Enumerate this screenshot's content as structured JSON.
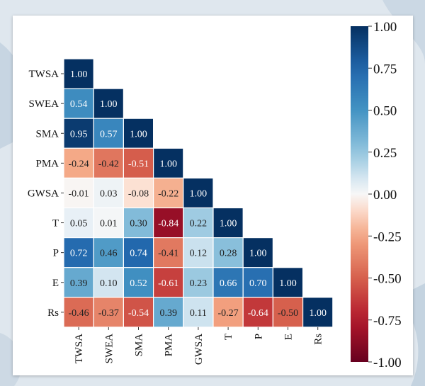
{
  "chart_data": {
    "type": "heatmap",
    "title": "",
    "xlabel": "",
    "ylabel": "",
    "variables": [
      "TWSA",
      "SWEA",
      "SMA",
      "PMA",
      "GWSA",
      "T",
      "P",
      "E",
      "Rs"
    ],
    "matrix": [
      [
        1.0
      ],
      [
        0.54,
        1.0
      ],
      [
        0.95,
        0.57,
        1.0
      ],
      [
        -0.24,
        -0.42,
        -0.51,
        1.0
      ],
      [
        -0.01,
        0.03,
        -0.08,
        -0.22,
        1.0
      ],
      [
        0.05,
        0.01,
        0.3,
        -0.84,
        0.22,
        1.0
      ],
      [
        0.72,
        0.46,
        0.74,
        -0.41,
        0.12,
        0.28,
        1.0
      ],
      [
        0.39,
        0.1,
        0.52,
        -0.61,
        0.23,
        0.66,
        0.7,
        1.0
      ],
      [
        -0.46,
        -0.37,
        -0.54,
        0.39,
        0.11,
        -0.27,
        -0.64,
        -0.5,
        1.0
      ]
    ],
    "colorbar": {
      "range": [
        -1.0,
        1.0
      ],
      "ticks": [
        "1.00",
        "0.75",
        "0.50",
        "0.25",
        "0.00",
        "-0.25",
        "-0.50",
        "-0.75",
        "-1.00"
      ],
      "colormap": "RdBu"
    },
    "grid": false,
    "legend": "colorbar-right"
  }
}
